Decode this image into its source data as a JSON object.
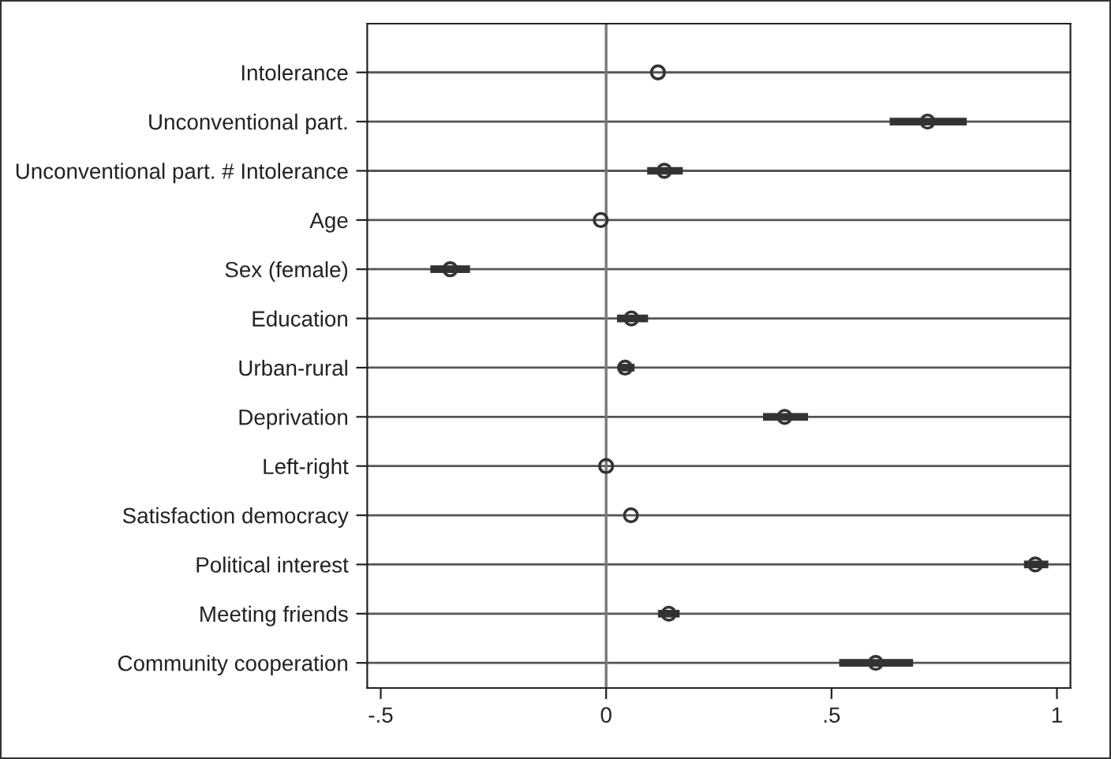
{
  "chart_data": {
    "type": "scatter",
    "orientation": "horizontal",
    "categories": [
      "Intolerance",
      "Unconventional part.",
      "Unconventional part. # Intolerance",
      "Age",
      "Sex (female)",
      "Education",
      "Urban-rural",
      "Deprivation",
      "Left-right",
      "Satisfaction democracy",
      "Political interest",
      "Meeting friends",
      "Community cooperation"
    ],
    "values": [
      0.115,
      0.713,
      0.129,
      -0.012,
      -0.346,
      0.056,
      0.042,
      0.396,
      0.0,
      0.055,
      0.952,
      0.139,
      0.598
    ],
    "errors": [
      null,
      [
        0.629,
        0.8
      ],
      [
        0.091,
        0.17
      ],
      null,
      [
        -0.39,
        -0.302
      ],
      [
        0.024,
        0.093
      ],
      [
        0.027,
        0.063
      ],
      [
        0.348,
        0.448
      ],
      null,
      null,
      [
        0.927,
        0.981
      ],
      [
        0.115,
        0.163
      ],
      [
        0.517,
        0.681
      ]
    ],
    "color": "#333333",
    "marker": "circle",
    "grid": "y",
    "xlim": [
      -0.53,
      1.03
    ],
    "xticks": [
      {
        "value": -0.5,
        "label": "-.5"
      },
      0,
      {
        "value": 0.5,
        "label": ".5"
      },
      1
    ],
    "ref_lines": [
      {
        "axis": "x",
        "value": 0,
        "color": "#777777"
      }
    ]
  }
}
